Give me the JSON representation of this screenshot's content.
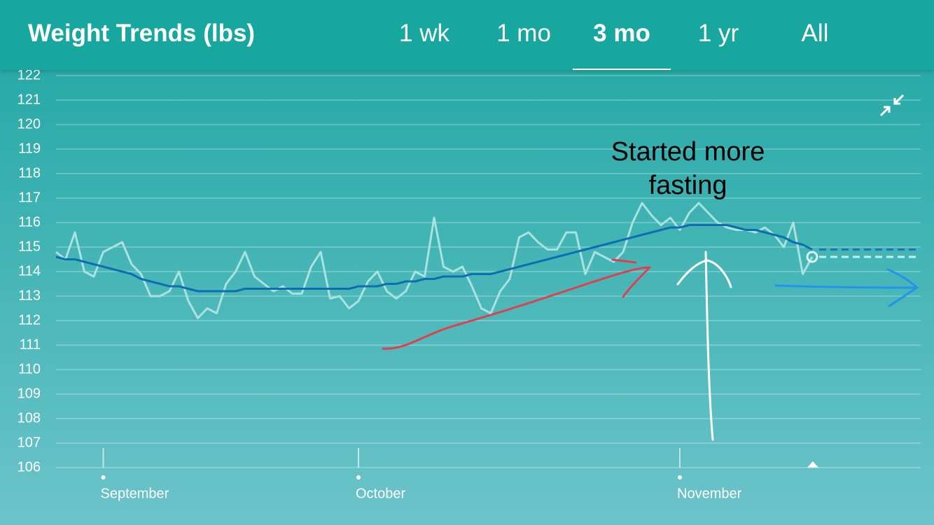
{
  "header": {
    "title": "Weight Trends (lbs)",
    "tabs": [
      "1 wk",
      "1 mo",
      "3 mo",
      "1 yr",
      "All"
    ],
    "selected_index": 2
  },
  "chart_data": {
    "type": "line",
    "annotation": "Started more fasting",
    "categories": [
      null,
      null,
      null,
      null,
      null,
      "September",
      null,
      null,
      null,
      null,
      null,
      null,
      null,
      null,
      null,
      null,
      null,
      null,
      null,
      null,
      null,
      null,
      null,
      null,
      null,
      null,
      null,
      null,
      null,
      null,
      null,
      null,
      "October",
      null,
      null,
      null,
      null,
      null,
      null,
      null,
      null,
      null,
      null,
      null,
      null,
      null,
      null,
      null,
      null,
      null,
      null,
      null,
      null,
      null,
      null,
      null,
      null,
      null,
      null,
      null,
      null,
      null,
      null,
      null,
      null,
      null,
      "November",
      null,
      null,
      null,
      null,
      null,
      null,
      null,
      null,
      null,
      null,
      null,
      null,
      null,
      null
    ],
    "series": [
      {
        "color": "#a9e2df",
        "values": [
          114.8,
          114.5,
          115.6,
          114.0,
          113.8,
          114.8,
          115.0,
          115.2,
          114.3,
          113.9,
          113.0,
          113.0,
          113.2,
          114.0,
          112.8,
          112.1,
          112.5,
          112.3,
          113.5,
          114.0,
          114.8,
          113.8,
          113.5,
          113.2,
          113.4,
          113.1,
          113.1,
          114.2,
          114.8,
          112.9,
          113.0,
          112.5,
          112.8,
          113.6,
          114.0,
          113.2,
          112.9,
          113.2,
          114.0,
          113.8,
          116.2,
          114.2,
          114.0,
          114.2,
          113.4,
          112.5,
          112.3,
          113.2,
          113.7,
          115.4,
          115.6,
          115.2,
          114.9,
          114.9,
          115.6,
          115.6,
          113.9,
          114.8,
          114.6,
          114.4,
          114.8,
          116.0,
          116.8,
          116.3,
          115.9,
          116.2,
          115.7,
          116.4,
          116.8,
          116.4,
          116.0,
          115.8,
          115.7,
          115.7,
          115.6,
          115.8,
          115.5,
          115.0,
          116.0,
          113.9,
          114.6
        ]
      },
      {
        "color": "#0e6eb0",
        "values": [
          114.6,
          114.5,
          114.5,
          114.4,
          114.3,
          114.2,
          114.1,
          114.0,
          113.9,
          113.7,
          113.6,
          113.5,
          113.4,
          113.4,
          113.3,
          113.2,
          113.2,
          113.2,
          113.2,
          113.2,
          113.3,
          113.3,
          113.3,
          113.3,
          113.3,
          113.3,
          113.3,
          113.3,
          113.3,
          113.3,
          113.3,
          113.3,
          113.4,
          113.4,
          113.4,
          113.5,
          113.5,
          113.6,
          113.6,
          113.7,
          113.7,
          113.8,
          113.8,
          113.8,
          113.9,
          113.9,
          113.9,
          114.0,
          114.1,
          114.2,
          114.3,
          114.4,
          114.5,
          114.6,
          114.7,
          114.8,
          114.9,
          115.0,
          115.1,
          115.2,
          115.3,
          115.4,
          115.5,
          115.6,
          115.7,
          115.8,
          115.8,
          115.9,
          115.9,
          115.9,
          115.9,
          115.9,
          115.8,
          115.7,
          115.7,
          115.6,
          115.5,
          115.4,
          115.2,
          115.1,
          114.9
        ]
      }
    ],
    "ylim": [
      106,
      122
    ],
    "yticks": [
      106,
      107,
      108,
      109,
      110,
      111,
      112,
      113,
      114,
      115,
      116,
      117,
      118,
      119,
      120,
      121,
      122
    ],
    "grid": true
  }
}
